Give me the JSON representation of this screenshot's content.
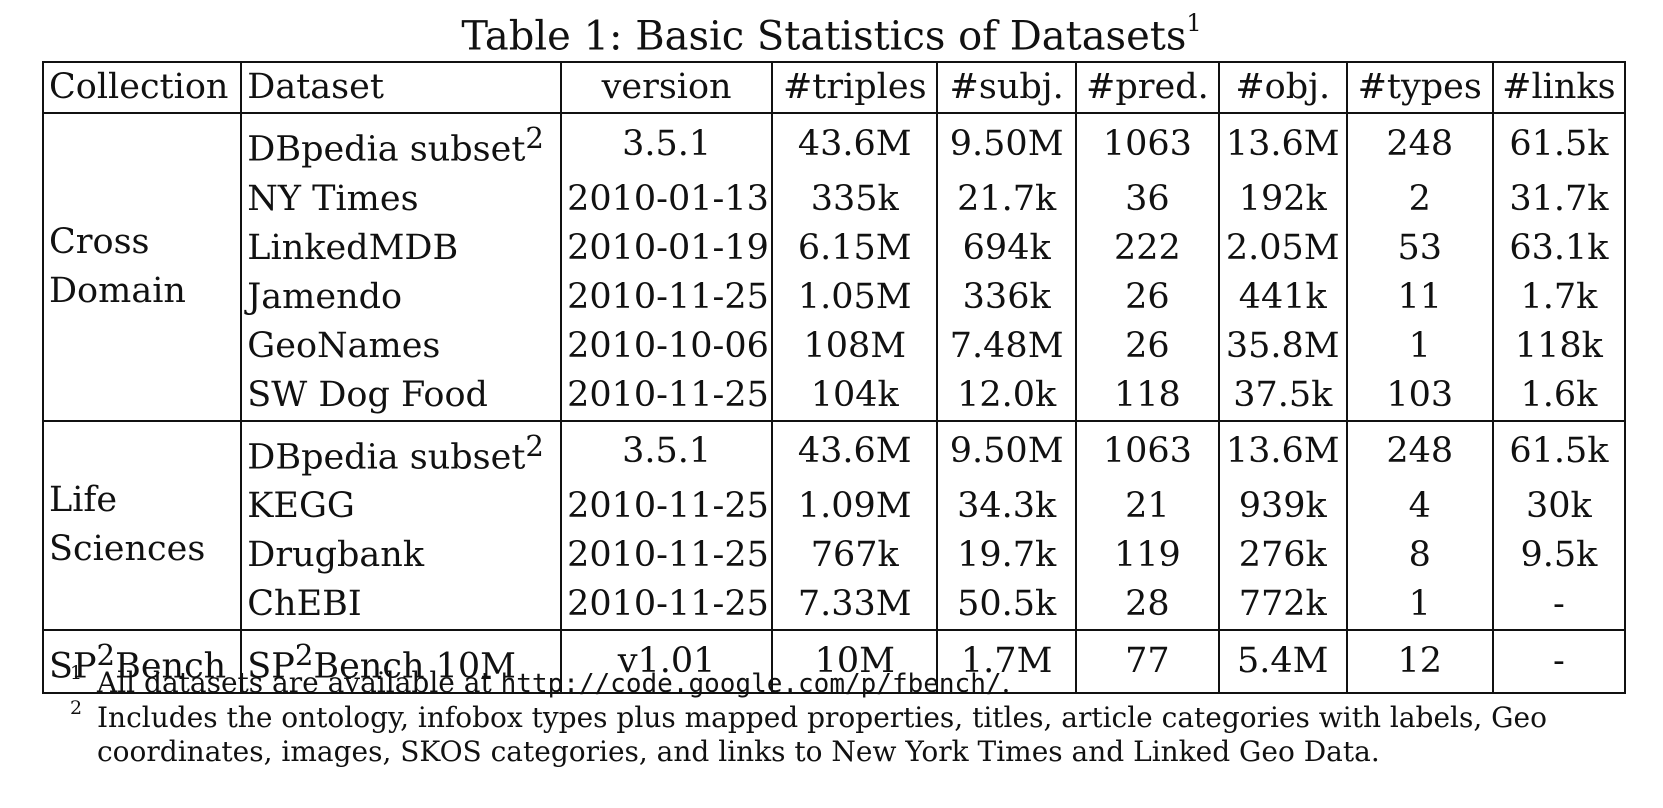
{
  "caption": {
    "text": "Table 1: Basic Statistics of Datasets",
    "footnote_mark": "1"
  },
  "headers": [
    "Collection",
    "Dataset",
    "version",
    "#triples",
    "#subj.",
    "#pred.",
    "#obj.",
    "#types",
    "#links"
  ],
  "groups": [
    {
      "collection_lines": [
        "Cross",
        "Domain"
      ],
      "rows": [
        {
          "dataset": "DBpedia subset",
          "sup": "2",
          "version": "3.5.1",
          "triples": "43.6M",
          "subj": "9.50M",
          "pred": "1063",
          "obj": "13.6M",
          "types": "248",
          "links": "61.5k"
        },
        {
          "dataset": "NY Times",
          "sup": "",
          "version": "2010-01-13",
          "triples": "335k",
          "subj": "21.7k",
          "pred": "36",
          "obj": "192k",
          "types": "2",
          "links": "31.7k"
        },
        {
          "dataset": "LinkedMDB",
          "sup": "",
          "version": "2010-01-19",
          "triples": "6.15M",
          "subj": "694k",
          "pred": "222",
          "obj": "2.05M",
          "types": "53",
          "links": "63.1k"
        },
        {
          "dataset": "Jamendo",
          "sup": "",
          "version": "2010-11-25",
          "triples": "1.05M",
          "subj": "336k",
          "pred": "26",
          "obj": "441k",
          "types": "11",
          "links": "1.7k"
        },
        {
          "dataset": "GeoNames",
          "sup": "",
          "version": "2010-10-06",
          "triples": "108M",
          "subj": "7.48M",
          "pred": "26",
          "obj": "35.8M",
          "types": "1",
          "links": "118k"
        },
        {
          "dataset": "SW Dog Food",
          "sup": "",
          "version": "2010-11-25",
          "triples": "104k",
          "subj": "12.0k",
          "pred": "118",
          "obj": "37.5k",
          "types": "103",
          "links": "1.6k"
        }
      ]
    },
    {
      "collection_lines": [
        "Life",
        "Sciences"
      ],
      "rows": [
        {
          "dataset": "DBpedia subset",
          "sup": "2",
          "version": "3.5.1",
          "triples": "43.6M",
          "subj": "9.50M",
          "pred": "1063",
          "obj": "13.6M",
          "types": "248",
          "links": "61.5k"
        },
        {
          "dataset": "KEGG",
          "sup": "",
          "version": "2010-11-25",
          "triples": "1.09M",
          "subj": "34.3k",
          "pred": "21",
          "obj": "939k",
          "types": "4",
          "links": "30k"
        },
        {
          "dataset": "Drugbank",
          "sup": "",
          "version": "2010-11-25",
          "triples": "767k",
          "subj": "19.7k",
          "pred": "119",
          "obj": "276k",
          "types": "8",
          "links": "9.5k"
        },
        {
          "dataset": "ChEBI",
          "sup": "",
          "version": "2010-11-25",
          "triples": "7.33M",
          "subj": "50.5k",
          "pred": "28",
          "obj": "772k",
          "types": "1",
          "links": "-"
        }
      ]
    },
    {
      "collection_lines": [
        "SP",
        "2",
        "Bench"
      ],
      "rows": [
        {
          "dataset": "SP",
          "dataset_sup_mid": "2",
          "dataset_tail": "Bench 10M",
          "sup": "",
          "version": "v1.01",
          "triples": "10M",
          "subj": "1.7M",
          "pred": "77",
          "obj": "5.4M",
          "types": "12",
          "links": "-"
        }
      ]
    }
  ],
  "footnotes": [
    {
      "mark": "1",
      "text": "All datasets are available at ",
      "code": "http://code.google.com/p/fbench/",
      "tail": "."
    },
    {
      "mark": "2",
      "text": "Includes the ontology, infobox types plus mapped properties, titles, article categories with labels, Geo coordinates, images, SKOS categories, and links to New York Times and Linked Geo Data."
    }
  ]
}
